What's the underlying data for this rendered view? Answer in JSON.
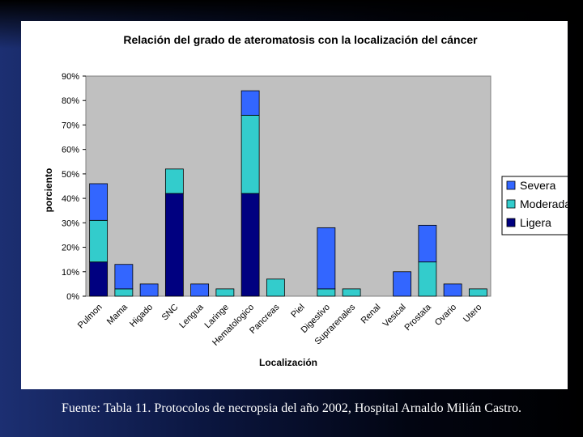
{
  "chart_data": {
    "type": "bar",
    "stacked": true,
    "title": "Relación del grado de ateromatosis con la localización del cáncer",
    "xlabel": "Localización",
    "ylabel": "porciento",
    "ylim": [
      0,
      90
    ],
    "yticks": [
      "0%",
      "10%",
      "20%",
      "30%",
      "40%",
      "50%",
      "60%",
      "70%",
      "80%",
      "90%"
    ],
    "categories": [
      "Pulmon",
      "Mama",
      "Higado",
      "SNC",
      "Lengua",
      "Laringe",
      "Hematologico",
      "Pancreas",
      "Piel",
      "Digestivo",
      "Suprarenales",
      "Renal",
      "Vesical",
      "Prostata",
      "Ovario",
      "Utero"
    ],
    "series": [
      {
        "name": "Ligera",
        "color": "#000080",
        "values": [
          14,
          0,
          0,
          42,
          0,
          0,
          42,
          0,
          0,
          0,
          0,
          0,
          0,
          0,
          0,
          0
        ]
      },
      {
        "name": "Moderada",
        "color": "#33cccc",
        "values": [
          17,
          3,
          0,
          10,
          0,
          3,
          32,
          7,
          0,
          3,
          3,
          0,
          0,
          14,
          0,
          3
        ]
      },
      {
        "name": "Severa",
        "color": "#3366ff",
        "values": [
          15,
          10,
          5,
          0,
          5,
          0,
          10,
          0,
          0,
          25,
          0,
          0,
          10,
          15,
          5,
          0
        ]
      }
    ],
    "legend": {
      "placement": "right",
      "order": [
        "Severa",
        "Moderada",
        "Ligera"
      ]
    },
    "plot_background": "#c0c0c0",
    "grid": false
  },
  "footnote": "Fuente: Tabla 11. Protocolos de necropsia del año 2002, Hospital Arnaldo Milián Castro."
}
